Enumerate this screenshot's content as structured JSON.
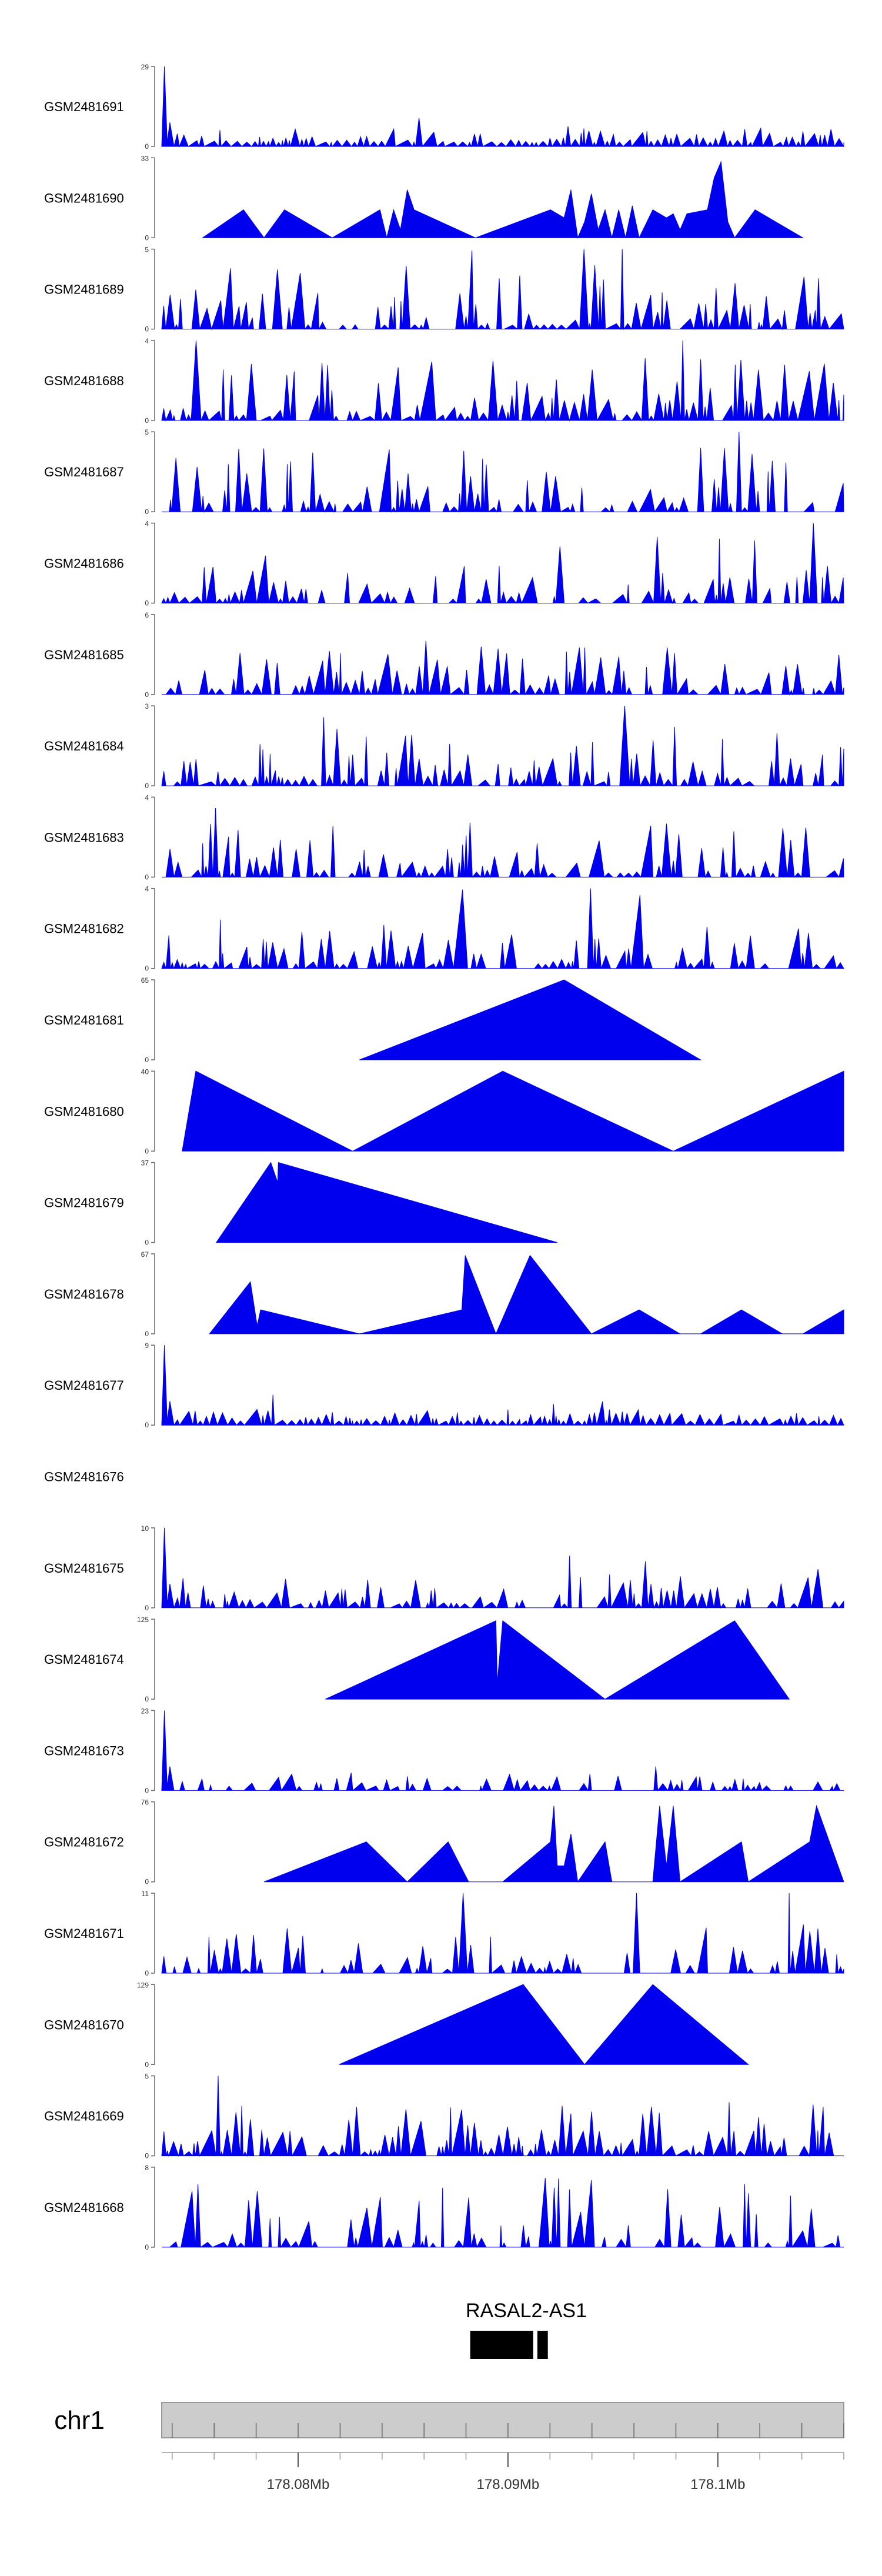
{
  "chart_data": {
    "type": "area",
    "title": "",
    "color": "#0000ee",
    "axis_color": "#666666",
    "chromosome": {
      "label": "chr1",
      "band_color": "#cccccc",
      "xlim": [
        178073500,
        178106000
      ],
      "ticks": [
        {
          "value": 178080000,
          "label": "178.08Mb"
        },
        {
          "value": 178090000,
          "label": "178.09Mb"
        },
        {
          "value": 178100000,
          "label": "178.1Mb"
        }
      ],
      "minor_tick_step": 2000
    },
    "gene": {
      "name": "RASAL2-AS1",
      "exons": [
        [
          178088200,
          178091200
        ],
        [
          178091400,
          178091900
        ]
      ]
    },
    "tracks": [
      {
        "name": "GSM2481691",
        "ymax": 29,
        "pattern": "noise",
        "seed": 11,
        "density": 1.0,
        "peakScale": 0.18,
        "edgePeak": 1.0
      },
      {
        "name": "GSM2481690",
        "ymax": 33,
        "pattern": "pts",
        "pts": [
          [
            0.06,
            0
          ],
          [
            0.12,
            0.35
          ],
          [
            0.15,
            0
          ],
          [
            0.18,
            0.35
          ],
          [
            0.25,
            0
          ],
          [
            0.32,
            0.35
          ],
          [
            0.33,
            0
          ],
          [
            0.34,
            0.35
          ],
          [
            0.35,
            0.1
          ],
          [
            0.36,
            0.6
          ],
          [
            0.37,
            0.35
          ],
          [
            0.46,
            0
          ],
          [
            0.57,
            0.35
          ],
          [
            0.59,
            0.25
          ],
          [
            0.6,
            0.6
          ],
          [
            0.61,
            0
          ],
          [
            0.62,
            0.2
          ],
          [
            0.63,
            0.55
          ],
          [
            0.64,
            0.1
          ],
          [
            0.65,
            0.35
          ],
          [
            0.66,
            0
          ],
          [
            0.67,
            0.35
          ],
          [
            0.68,
            0
          ],
          [
            0.69,
            0.4
          ],
          [
            0.7,
            0
          ],
          [
            0.72,
            0.35
          ],
          [
            0.74,
            0.25
          ],
          [
            0.75,
            0.3
          ],
          [
            0.76,
            0.1
          ],
          [
            0.77,
            0.3
          ],
          [
            0.8,
            0.35
          ],
          [
            0.81,
            0.75
          ],
          [
            0.82,
            0.95
          ],
          [
            0.83,
            0.2
          ],
          [
            0.84,
            0
          ],
          [
            0.87,
            0.35
          ],
          [
            0.94,
            0
          ]
        ]
      },
      {
        "name": "GSM2481689",
        "ymax": 5,
        "pattern": "noise",
        "seed": 23,
        "density": 0.8,
        "peakScale": 0.75
      },
      {
        "name": "GSM2481688",
        "ymax": 4,
        "pattern": "noise",
        "seed": 37,
        "density": 0.85,
        "peakScale": 0.75
      },
      {
        "name": "GSM2481687",
        "ymax": 5,
        "pattern": "noise",
        "seed": 41,
        "density": 0.7,
        "peakScale": 0.75
      },
      {
        "name": "GSM2481686",
        "ymax": 4,
        "pattern": "noise",
        "seed": 53,
        "density": 0.7,
        "peakScale": 0.55
      },
      {
        "name": "GSM2481685",
        "ymax": 6,
        "pattern": "noise",
        "seed": 61,
        "density": 0.8,
        "peakScale": 0.55
      },
      {
        "name": "GSM2481684",
        "ymax": 3,
        "pattern": "noise",
        "seed": 71,
        "density": 0.8,
        "peakScale": 0.7
      },
      {
        "name": "GSM2481683",
        "ymax": 4,
        "pattern": "noise",
        "seed": 83,
        "density": 0.75,
        "peakScale": 0.65
      },
      {
        "name": "GSM2481682",
        "ymax": 4,
        "pattern": "noise",
        "seed": 97,
        "density": 0.8,
        "peakScale": 0.5
      },
      {
        "name": "GSM2481681",
        "ymax": 65,
        "pattern": "pts",
        "pts": [
          [
            0.29,
            0
          ],
          [
            0.59,
            1.0
          ],
          [
            0.79,
            0
          ]
        ]
      },
      {
        "name": "GSM2481680",
        "ymax": 40,
        "pattern": "pts",
        "pts": [
          [
            0.03,
            0
          ],
          [
            0.05,
            1.0
          ],
          [
            0.28,
            0
          ],
          [
            0.5,
            1.0
          ],
          [
            0.75,
            0
          ],
          [
            1.0,
            1.0
          ],
          [
            1.0,
            0
          ]
        ]
      },
      {
        "name": "GSM2481679",
        "ymax": 37,
        "pattern": "pts",
        "pts": [
          [
            0.08,
            0
          ],
          [
            0.16,
            1.0
          ],
          [
            0.17,
            0.75
          ],
          [
            0.171,
            1.0
          ],
          [
            0.58,
            0
          ]
        ]
      },
      {
        "name": "GSM2481678",
        "ymax": 67,
        "pattern": "pts",
        "pts": [
          [
            0.07,
            0
          ],
          [
            0.13,
            0.65
          ],
          [
            0.14,
            0.1
          ],
          [
            0.145,
            0.3
          ],
          [
            0.29,
            0
          ],
          [
            0.44,
            0.3
          ],
          [
            0.445,
            0.98
          ],
          [
            0.49,
            0
          ],
          [
            0.54,
            0.98
          ],
          [
            0.63,
            0
          ],
          [
            0.7,
            0.3
          ],
          [
            0.76,
            0
          ],
          [
            0.79,
            0
          ],
          [
            0.85,
            0.3
          ],
          [
            0.91,
            0
          ],
          [
            0.94,
            0
          ],
          [
            1.0,
            0.3
          ],
          [
            1.0,
            0
          ]
        ]
      },
      {
        "name": "GSM2481677",
        "ymax": 9,
        "pattern": "noise",
        "seed": 103,
        "density": 1.0,
        "peakScale": 0.15,
        "edgePeak": 1.0
      },
      {
        "name": "GSM2481676",
        "ymax": null,
        "pattern": "empty"
      },
      {
        "name": "GSM2481675",
        "ymax": 10,
        "pattern": "noise",
        "seed": 109,
        "density": 0.8,
        "peakScale": 0.35,
        "edgePeak": 1.0
      },
      {
        "name": "GSM2481674",
        "ymax": 125,
        "pattern": "pts",
        "pts": [
          [
            0.24,
            0
          ],
          [
            0.49,
            0.98
          ],
          [
            0.492,
            0.2
          ],
          [
            0.5,
            0.98
          ],
          [
            0.65,
            0
          ],
          [
            0.84,
            0.98
          ],
          [
            0.92,
            0
          ]
        ]
      },
      {
        "name": "GSM2481673",
        "ymax": 23,
        "pattern": "noise",
        "seed": 127,
        "density": 0.6,
        "peakScale": 0.18,
        "edgePeak": 1.0
      },
      {
        "name": "GSM2481672",
        "ymax": 76,
        "pattern": "pts",
        "pts": [
          [
            0.15,
            0
          ],
          [
            0.3,
            0.5
          ],
          [
            0.36,
            0
          ],
          [
            0.42,
            0.5
          ],
          [
            0.45,
            0
          ],
          [
            0.5,
            0
          ],
          [
            0.57,
            0.5
          ],
          [
            0.575,
            0.95
          ],
          [
            0.58,
            0.2
          ],
          [
            0.59,
            0.2
          ],
          [
            0.6,
            0.6
          ],
          [
            0.61,
            0
          ],
          [
            0.65,
            0.5
          ],
          [
            0.66,
            0
          ],
          [
            0.72,
            0
          ],
          [
            0.73,
            0.95
          ],
          [
            0.74,
            0.2
          ],
          [
            0.75,
            0.95
          ],
          [
            0.76,
            0
          ],
          [
            0.85,
            0.5
          ],
          [
            0.86,
            0
          ],
          [
            0.95,
            0.5
          ],
          [
            0.96,
            0.95
          ],
          [
            1.0,
            0
          ]
        ]
      },
      {
        "name": "GSM2481671",
        "ymax": 11,
        "pattern": "noise",
        "seed": 131,
        "density": 0.55,
        "peakScale": 0.6
      },
      {
        "name": "GSM2481670",
        "ymax": 129,
        "pattern": "pts",
        "pts": [
          [
            0.26,
            0
          ],
          [
            0.53,
            1.0
          ],
          [
            0.62,
            0
          ],
          [
            0.72,
            1.0
          ],
          [
            0.86,
            0
          ]
        ]
      },
      {
        "name": "GSM2481669",
        "ymax": 5,
        "pattern": "noise",
        "seed": 137,
        "density": 0.9,
        "peakScale": 0.65
      },
      {
        "name": "GSM2481668",
        "ymax": 8,
        "pattern": "noise",
        "seed": 149,
        "density": 0.6,
        "peakScale": 0.85
      }
    ]
  }
}
